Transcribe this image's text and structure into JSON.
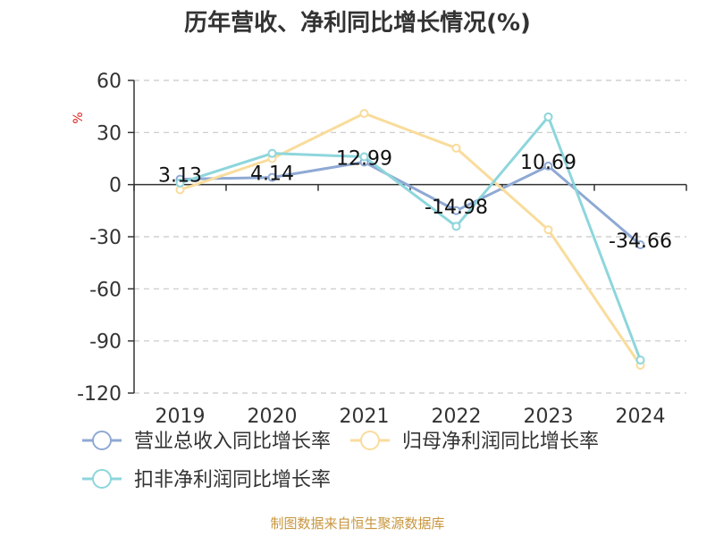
{
  "chart_data": {
    "type": "line",
    "title": "历年营收、净利同比增长情况(%)",
    "ylabel": "%",
    "xlabel": "",
    "categories": [
      "2019",
      "2020",
      "2021",
      "2022",
      "2023",
      "2024"
    ],
    "ylim": [
      -120,
      60
    ],
    "yticks": [
      60,
      30,
      0,
      -30,
      -60,
      -90,
      -120
    ],
    "grid": true,
    "legend_position": "bottom",
    "series": [
      {
        "name": "营业总收入同比增长率",
        "color": "#8fa9d4",
        "values": [
          3.13,
          4.14,
          12.99,
          -14.98,
          10.69,
          -34.66
        ],
        "labels": [
          "3.13",
          "4.14",
          "12.99",
          "-14.98",
          "10.69",
          "-34.66"
        ]
      },
      {
        "name": "归母净利润同比增长率",
        "color": "#f9dc9c",
        "values": [
          -3,
          15,
          41,
          21,
          -26,
          -104
        ]
      },
      {
        "name": "扣非净利润同比增长率",
        "color": "#8dd6dc",
        "values": [
          1,
          18,
          16,
          -24,
          39,
          -101
        ]
      }
    ],
    "source": "制图数据来自恒生聚源数据库"
  }
}
